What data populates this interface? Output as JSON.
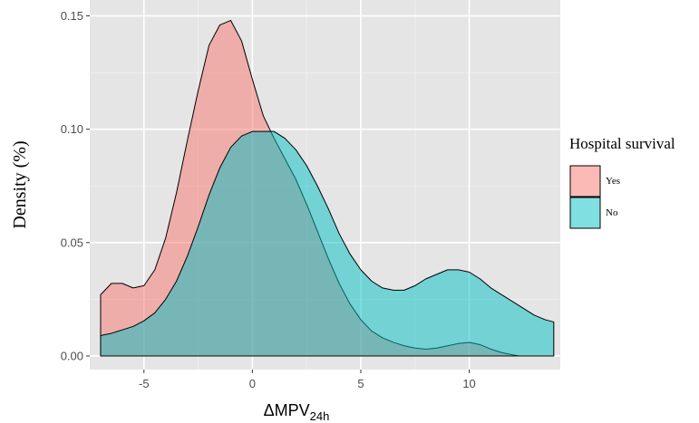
{
  "chart_data": {
    "type": "area",
    "title": "",
    "xlabel": {
      "main": "ΔMPV",
      "subscript": "24h"
    },
    "ylabel": "Density (%)",
    "xlim": [
      -7.5,
      14.2
    ],
    "ylim": [
      -0.006,
      0.157
    ],
    "x_ticks": [
      -5,
      0,
      5,
      10
    ],
    "y_ticks": [
      0.0,
      0.05,
      0.1,
      0.15
    ],
    "x_tick_labels": [
      "-5",
      "0",
      "5",
      "10"
    ],
    "y_tick_labels": [
      "0.00",
      "0.05",
      "0.10",
      "0.15"
    ],
    "grid": true,
    "legend": {
      "title": "Hospital survival",
      "placement": "right",
      "entries": [
        "Yes",
        "No"
      ]
    },
    "series": [
      {
        "name": "Yes",
        "color": "#F8766D",
        "x": [
          -7.0,
          -6.5,
          -6.0,
          -5.5,
          -5.0,
          -4.5,
          -4.0,
          -3.5,
          -3.0,
          -2.5,
          -2.0,
          -1.5,
          -1.0,
          -0.5,
          0.0,
          0.5,
          1.0,
          1.5,
          2.0,
          2.5,
          3.0,
          3.5,
          4.0,
          4.5,
          5.0,
          5.5,
          6.0,
          6.5,
          7.0,
          7.5,
          8.0,
          8.5,
          9.0,
          9.5,
          10.0,
          10.5,
          11.0,
          11.5,
          12.0,
          12.3
        ],
        "y": [
          0.027,
          0.032,
          0.032,
          0.03,
          0.031,
          0.038,
          0.052,
          0.072,
          0.095,
          0.117,
          0.137,
          0.146,
          0.148,
          0.139,
          0.122,
          0.106,
          0.096,
          0.087,
          0.078,
          0.067,
          0.055,
          0.043,
          0.032,
          0.023,
          0.016,
          0.011,
          0.008,
          0.006,
          0.0045,
          0.0035,
          0.003,
          0.0035,
          0.0045,
          0.0055,
          0.006,
          0.005,
          0.003,
          0.0015,
          0.0005,
          0.0
        ]
      },
      {
        "name": "No",
        "color": "#00BFC4",
        "x": [
          -7.0,
          -6.5,
          -6.0,
          -5.5,
          -5.0,
          -4.5,
          -4.0,
          -3.5,
          -3.0,
          -2.5,
          -2.0,
          -1.5,
          -1.0,
          -0.5,
          0.0,
          0.5,
          1.0,
          1.5,
          2.0,
          2.5,
          3.0,
          3.5,
          4.0,
          4.5,
          5.0,
          5.5,
          6.0,
          6.5,
          7.0,
          7.5,
          8.0,
          8.5,
          9.0,
          9.5,
          10.0,
          10.5,
          11.0,
          11.5,
          12.0,
          12.5,
          13.0,
          13.5,
          13.9
        ],
        "y": [
          0.009,
          0.01,
          0.0115,
          0.013,
          0.0155,
          0.019,
          0.025,
          0.033,
          0.044,
          0.057,
          0.071,
          0.083,
          0.092,
          0.097,
          0.099,
          0.099,
          0.099,
          0.096,
          0.091,
          0.084,
          0.075,
          0.065,
          0.054,
          0.045,
          0.038,
          0.033,
          0.03,
          0.029,
          0.029,
          0.031,
          0.034,
          0.036,
          0.038,
          0.038,
          0.037,
          0.034,
          0.03,
          0.027,
          0.024,
          0.021,
          0.018,
          0.016,
          0.015
        ]
      }
    ]
  }
}
